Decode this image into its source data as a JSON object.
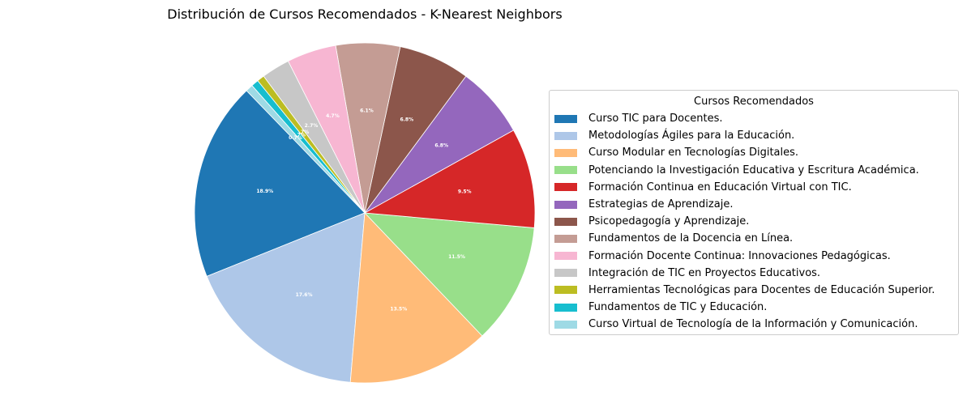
{
  "chart_data": {
    "type": "pie",
    "title": "Distribución de Cursos Recomendados - K-Nearest Neighbors",
    "legend_title": "Cursos Recomendados",
    "legend_position": "right",
    "start_angle_deg": 134,
    "direction": "counterclockwise",
    "slices": [
      {
        "label": "Curso TIC para Docentes.",
        "value": 18.9,
        "pct_label": "18.9%",
        "color": "#1f77b4"
      },
      {
        "label": "Metodologías Ágiles para la Educación.",
        "value": 17.6,
        "pct_label": "17.6%",
        "color": "#aec7e8"
      },
      {
        "label": "Curso Modular en Tecnologías Digitales.",
        "value": 13.5,
        "pct_label": "13.5%",
        "color": "#ffbb78"
      },
      {
        "label": "Potenciando la Investigación Educativa y Escritura Académica.",
        "value": 11.5,
        "pct_label": "11.5%",
        "color": "#98df8a"
      },
      {
        "label": "Formación Continua en Educación Virtual con TIC.",
        "value": 9.5,
        "pct_label": "9.5%",
        "color": "#d62728"
      },
      {
        "label": "Estrategias de Aprendizaje.",
        "value": 6.8,
        "pct_label": "6.8%",
        "color": "#9467bd"
      },
      {
        "label": "Psicopedagogía y Aprendizaje.",
        "value": 6.8,
        "pct_label": "6.8%",
        "color": "#8c564b"
      },
      {
        "label": "Fundamentos de la Docencia en Línea.",
        "value": 6.1,
        "pct_label": "6.1%",
        "color": "#c49c94"
      },
      {
        "label": "Formación Docente Continua: Innovaciones Pedagógicas.",
        "value": 4.7,
        "pct_label": "4.7%",
        "color": "#f7b6d2"
      },
      {
        "label": "Integración de TIC en Proyectos Educativos.",
        "value": 2.7,
        "pct_label": "2.7%",
        "color": "#c7c7c7"
      },
      {
        "label": "Herramientas Tecnológicas para Docentes de Educación Superior.",
        "value": 0.7,
        "pct_label": "0.7%",
        "color": "#bcbd22"
      },
      {
        "label": "Fundamentos de TIC y Educación.",
        "value": 0.7,
        "pct_label": "0.7%",
        "color": "#17becf"
      },
      {
        "label": "Curso Virtual de Tecnología de la Información y Comunicación.",
        "value": 0.7,
        "pct_label": "0.7%",
        "color": "#9edae5"
      }
    ]
  }
}
